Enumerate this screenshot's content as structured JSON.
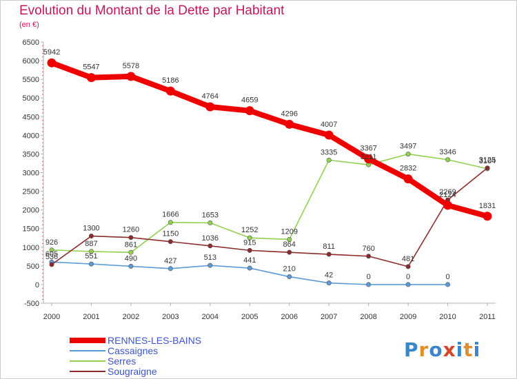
{
  "title": "Evolution du Montant de la Dette par Habitant",
  "subtitle": "(en €)",
  "logo": {
    "text": "Proxiti",
    "colors": [
      "#3a86c8",
      "#e0902a",
      "#3a86c8",
      "#d4452a",
      "#3a86c8",
      "#e0902a",
      "#3a86c8"
    ]
  },
  "chart_data": {
    "type": "line",
    "x": [
      "2000",
      "2001",
      "2002",
      "2003",
      "2004",
      "2005",
      "2006",
      "2007",
      "2008",
      "2009",
      "2010",
      "2011"
    ],
    "ylim": [
      -500,
      6500
    ],
    "yticks": [
      -500,
      0,
      500,
      1000,
      1500,
      2000,
      2500,
      3000,
      3500,
      4000,
      4500,
      5000,
      5500,
      6000,
      6500
    ],
    "grid": false,
    "legend_position": "bottom-left",
    "series": [
      {
        "name": "RENNES-LES-BAINS",
        "color": "#ee0000",
        "values": [
          5942,
          5547,
          5578,
          5186,
          4764,
          4659,
          4296,
          4007,
          3367,
          2832,
          2124,
          1831
        ],
        "labels": [
          "5942",
          "5547",
          "5578",
          "5186",
          "4764",
          "4659",
          "4296",
          "4007",
          "3367",
          "2832",
          "2124",
          "1831"
        ]
      },
      {
        "name": "Cassaignes",
        "color": "#5b9bd5",
        "values": [
          605,
          551,
          490,
          427,
          513,
          441,
          210,
          42,
          0,
          0,
          0,
          null
        ],
        "labels": [
          "605",
          "551",
          "490",
          "427",
          "513",
          "441",
          "210",
          "42",
          "0",
          "0",
          "0",
          ""
        ]
      },
      {
        "name": "Serres",
        "color": "#92d050",
        "values": [
          926,
          887,
          861,
          1666,
          1653,
          1252,
          1209,
          3335,
          3211,
          3497,
          3346,
          3104
        ],
        "labels": [
          "926",
          "887",
          "861",
          "1666",
          "1653",
          "1252",
          "1209",
          "3335",
          "3211",
          "3497",
          "3346",
          "3104"
        ]
      },
      {
        "name": "Sougraigne",
        "color": "#8b2b2b",
        "values": [
          536,
          1300,
          1260,
          1150,
          1036,
          915,
          864,
          811,
          760,
          481,
          2269,
          3125
        ],
        "labels": [
          "536",
          "1300",
          "1260",
          "1150",
          "1036",
          "915",
          "864",
          "811",
          "760",
          "481",
          "2269",
          "3125"
        ]
      }
    ]
  }
}
